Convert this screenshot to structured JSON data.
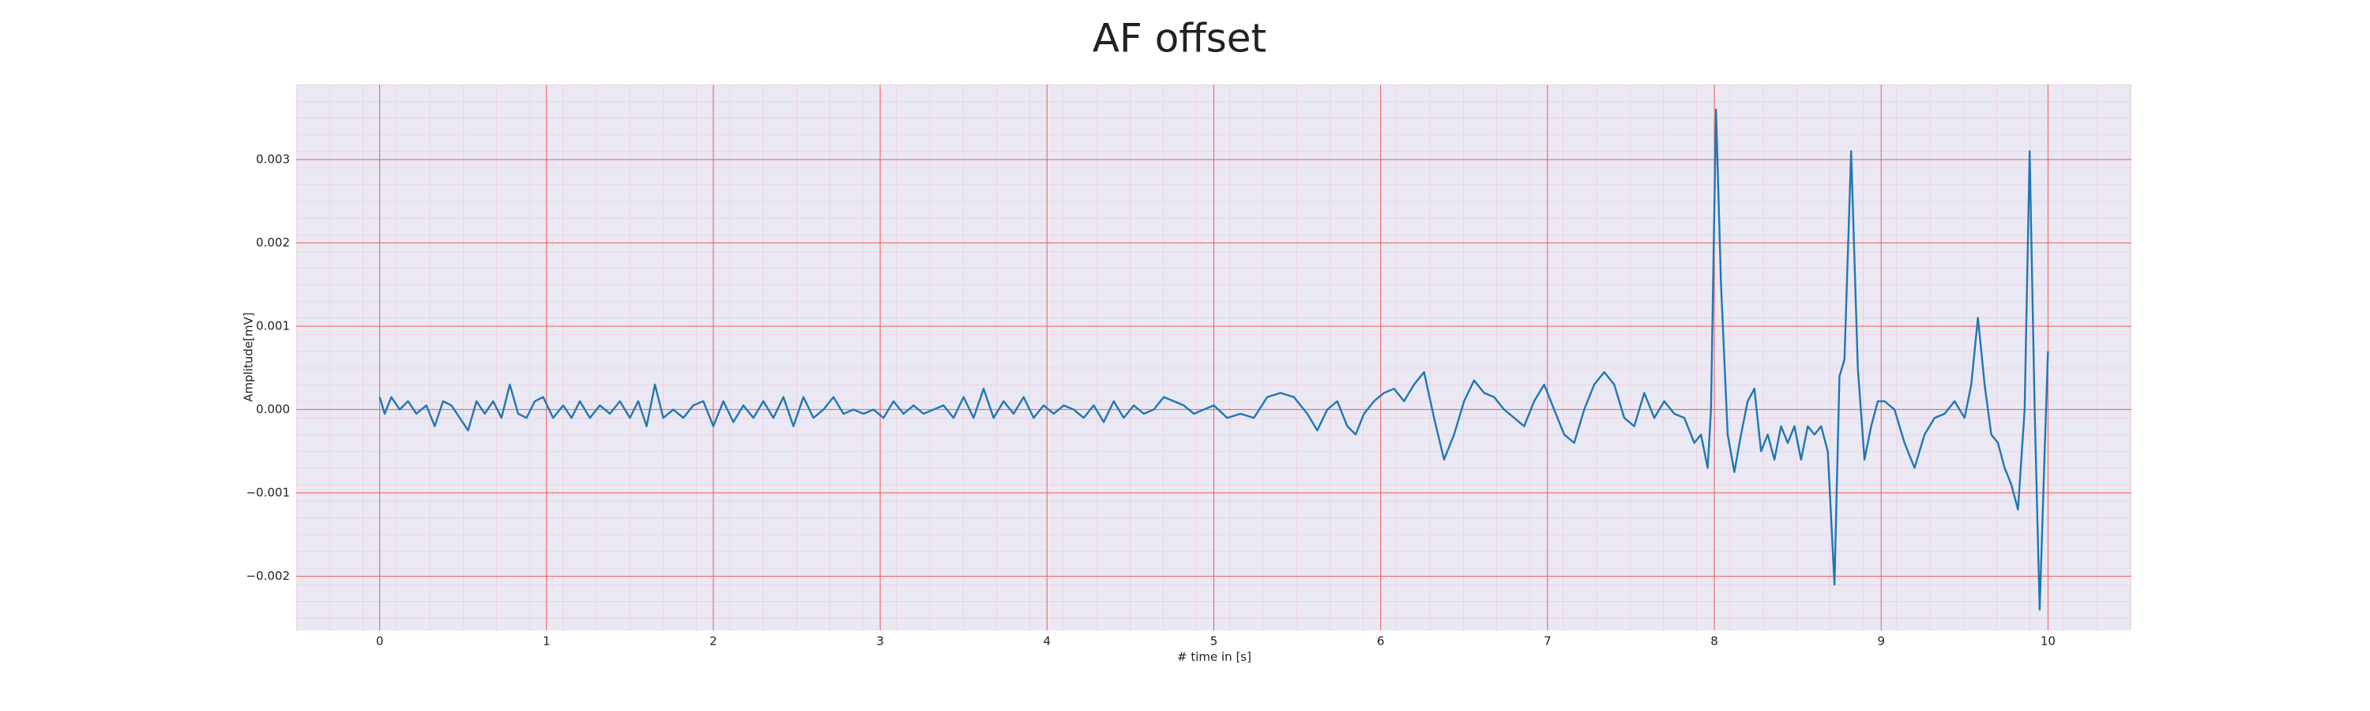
{
  "chart_data": {
    "type": "line",
    "title": "AF offset",
    "x_label": "# time in [s]",
    "y_label": "Amplitude[mV]",
    "xlim": [
      -0.5,
      10.5
    ],
    "ylim": [
      -0.00265,
      0.0039
    ],
    "xticks": [
      0,
      1,
      2,
      3,
      4,
      5,
      6,
      7,
      8,
      9,
      10
    ],
    "yticks": [
      {
        "value": -0.002,
        "label": "−0.002"
      },
      {
        "value": -0.001,
        "label": "−0.001"
      },
      {
        "value": 0,
        "label": "0.000"
      },
      0.001,
      0.002,
      0.003
    ],
    "grid": true,
    "series": [
      {
        "color": "#1f77b4",
        "x": [
          0,
          0.03,
          0.07,
          0.12,
          0.17,
          0.22,
          0.28,
          0.33,
          0.38,
          0.43,
          0.48,
          0.53,
          0.58,
          0.63,
          0.68,
          0.73,
          0.78,
          0.83,
          0.88,
          0.93,
          0.98,
          1.04,
          1.1,
          1.15,
          1.2,
          1.26,
          1.32,
          1.38,
          1.44,
          1.5,
          1.55,
          1.6,
          1.65,
          1.7,
          1.76,
          1.82,
          1.88,
          1.94,
          2.0,
          2.06,
          2.12,
          2.18,
          2.24,
          2.3,
          2.36,
          2.42,
          2.48,
          2.54,
          2.6,
          2.66,
          2.72,
          2.78,
          2.84,
          2.9,
          2.96,
          3.02,
          3.08,
          3.14,
          3.2,
          3.26,
          3.32,
          3.38,
          3.44,
          3.5,
          3.56,
          3.62,
          3.68,
          3.74,
          3.8,
          3.86,
          3.92,
          3.98,
          4.04,
          4.1,
          4.16,
          4.22,
          4.28,
          4.34,
          4.4,
          4.46,
          4.52,
          4.58,
          4.64,
          4.7,
          4.76,
          4.82,
          4.88,
          4.94,
          5.0,
          5.08,
          5.16,
          5.24,
          5.32,
          5.4,
          5.48,
          5.56,
          5.62,
          5.68,
          5.74,
          5.8,
          5.85,
          5.9,
          5.96,
          6.02,
          6.08,
          6.14,
          6.2,
          6.26,
          6.32,
          6.38,
          6.44,
          6.5,
          6.56,
          6.62,
          6.68,
          6.74,
          6.8,
          6.86,
          6.92,
          6.98,
          7.04,
          7.1,
          7.16,
          7.22,
          7.28,
          7.34,
          7.4,
          7.46,
          7.52,
          7.58,
          7.64,
          7.7,
          7.76,
          7.82,
          7.88,
          7.92,
          7.96,
          7.98,
          8.01,
          8.04,
          8.08,
          8.12,
          8.16,
          8.2,
          8.24,
          8.28,
          8.32,
          8.36,
          8.4,
          8.44,
          8.48,
          8.52,
          8.56,
          8.6,
          8.64,
          8.68,
          8.72,
          8.75,
          8.78,
          8.82,
          8.86,
          8.9,
          8.94,
          8.98,
          9.02,
          9.08,
          9.14,
          9.2,
          9.26,
          9.32,
          9.38,
          9.44,
          9.5,
          9.54,
          9.58,
          9.62,
          9.66,
          9.7,
          9.74,
          9.78,
          9.82,
          9.86,
          9.89,
          9.92,
          9.95,
          9.98,
          10.0
        ],
        "values": [
          0.00015,
          -5e-05,
          0.00015,
          0.0,
          0.0001,
          -5e-05,
          5e-05,
          -0.0002,
          0.0001,
          5e-05,
          -0.0001,
          -0.00025,
          0.0001,
          -5e-05,
          0.0001,
          -0.0001,
          0.0003,
          -5e-05,
          -0.0001,
          0.0001,
          0.00015,
          -0.0001,
          5e-05,
          -0.0001,
          0.0001,
          -0.0001,
          5e-05,
          -5e-05,
          0.0001,
          -0.0001,
          0.0001,
          -0.0002,
          0.0003,
          -0.0001,
          0.0,
          -0.0001,
          5e-05,
          0.0001,
          -0.0002,
          0.0001,
          -0.00015,
          5e-05,
          -0.0001,
          0.0001,
          -0.0001,
          0.00015,
          -0.0002,
          0.00015,
          -0.0001,
          0.0,
          0.00015,
          -5e-05,
          0.0,
          -5e-05,
          0.0,
          -0.0001,
          0.0001,
          -5e-05,
          5e-05,
          -5e-05,
          0.0,
          5e-05,
          -0.0001,
          0.00015,
          -0.0001,
          0.00025,
          -0.0001,
          0.0001,
          -5e-05,
          0.00015,
          -0.0001,
          5e-05,
          -5e-05,
          5e-05,
          0.0,
          -0.0001,
          5e-05,
          -0.00015,
          0.0001,
          -0.0001,
          5e-05,
          -5e-05,
          0.0,
          0.00015,
          0.0001,
          5e-05,
          -5e-05,
          0.0,
          5e-05,
          -0.0001,
          -5e-05,
          -0.0001,
          0.00015,
          0.0002,
          0.00015,
          -5e-05,
          -0.00025,
          0.0,
          0.0001,
          -0.0002,
          -0.0003,
          -5e-05,
          0.0001,
          0.0002,
          0.00025,
          0.0001,
          0.0003,
          0.00045,
          -0.0001,
          -0.0006,
          -0.0003,
          0.0001,
          0.00035,
          0.0002,
          0.00015,
          0.0,
          -0.0001,
          -0.0002,
          0.0001,
          0.0003,
          0.0,
          -0.0003,
          -0.0004,
          0.0,
          0.0003,
          0.00045,
          0.0003,
          -0.0001,
          -0.0002,
          0.0002,
          -0.0001,
          0.0001,
          -5e-05,
          -0.0001,
          -0.0004,
          -0.0003,
          -0.0007,
          0.0,
          0.0036,
          0.0015,
          -0.0003,
          -0.00075,
          -0.0003,
          0.0001,
          0.00025,
          -0.0005,
          -0.0003,
          -0.0006,
          -0.0002,
          -0.0004,
          -0.0002,
          -0.0006,
          -0.0002,
          -0.0003,
          -0.0002,
          -0.0005,
          -0.0021,
          0.0004,
          0.0006,
          0.0031,
          0.0005,
          -0.0006,
          -0.0002,
          0.0001,
          0.0001,
          0.0,
          -0.0004,
          -0.0007,
          -0.0003,
          -0.0001,
          -5e-05,
          0.0001,
          -0.0001,
          0.0003,
          0.0011,
          0.0003,
          -0.0003,
          -0.0004,
          -0.0007,
          -0.0009,
          -0.0012,
          0.0,
          0.0031,
          0.0,
          -0.0024,
          -0.0005,
          0.0007
        ]
      }
    ]
  }
}
